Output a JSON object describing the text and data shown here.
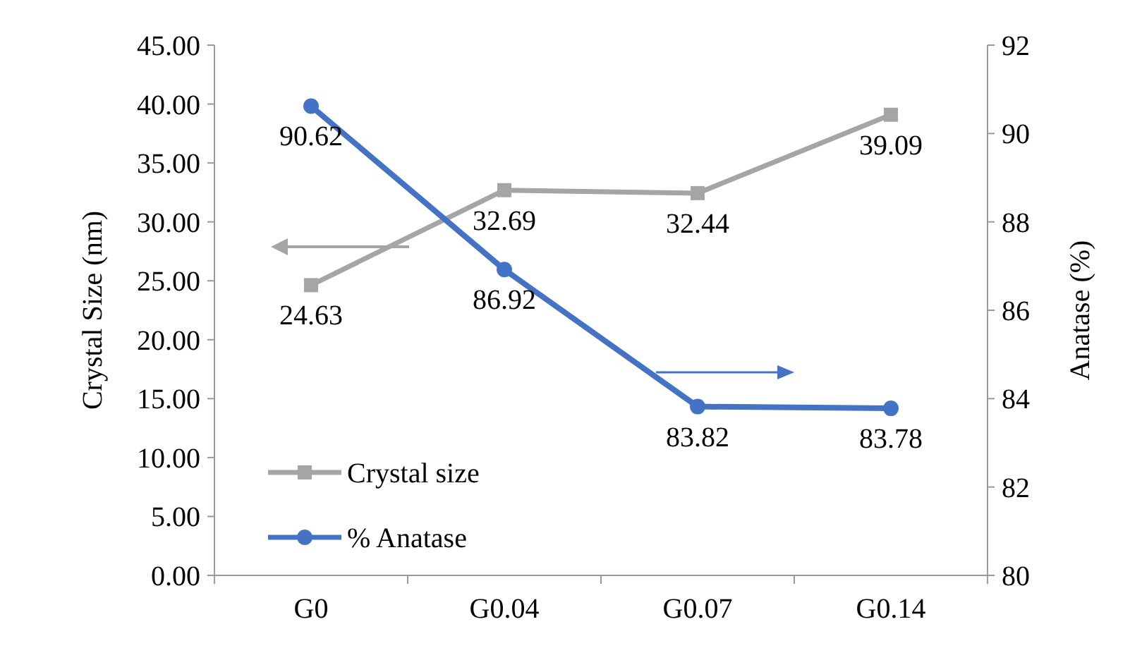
{
  "chart_data": {
    "type": "line",
    "categories": [
      "G0",
      "G0.04",
      "G0.07",
      "G0.14"
    ],
    "ylabel": "Crystal Size (nm)",
    "y2label": "Anatase (%)",
    "ylim": [
      0,
      45
    ],
    "yticks": [
      {
        "value": 0,
        "label": "0.00"
      },
      {
        "value": 5,
        "label": "5.00"
      },
      {
        "value": 10,
        "label": "10.00"
      },
      {
        "value": 15,
        "label": "15.00"
      },
      {
        "value": 20,
        "label": "20.00"
      },
      {
        "value": 25,
        "label": "25.00"
      },
      {
        "value": 30,
        "label": "30.00"
      },
      {
        "value": 35,
        "label": "35.00"
      },
      {
        "value": 40,
        "label": "40.00"
      },
      {
        "value": 45,
        "label": "45.00"
      }
    ],
    "y2lim": [
      80,
      92
    ],
    "y2ticks": [
      80,
      82,
      84,
      86,
      88,
      90,
      92
    ],
    "series": [
      {
        "name": "Crystal size",
        "color": "#a5a5a5",
        "values": [
          24.63,
          32.69,
          32.44,
          39.09
        ],
        "marker": "square"
      },
      {
        "name": "% Anatase",
        "color": "#4472c4",
        "values": [
          90.62,
          86.92,
          83.82,
          83.78
        ],
        "marker": "circle",
        "axis": "y2"
      }
    ],
    "data_labels": true,
    "legend": "bottom left",
    "grid": false
  }
}
